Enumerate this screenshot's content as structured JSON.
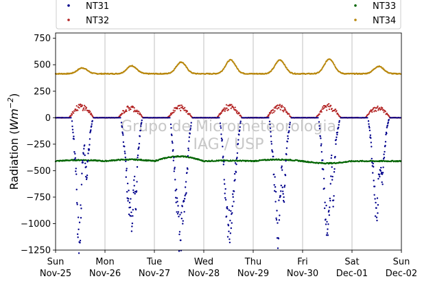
{
  "chart_data": {
    "type": "scatter",
    "title": "",
    "ylabel": "Radiation (Wm⁻²)",
    "ylabel_parts": {
      "prefix": "Radiation (",
      "unit": "Wm",
      "exponent": "−2",
      "suffix": ")"
    },
    "xlabel": "",
    "ylim": [
      -1250,
      800
    ],
    "yticks": [
      -1250,
      -1000,
      -750,
      -500,
      -250,
      0,
      250,
      500,
      750
    ],
    "ytick_labels": [
      "−1250",
      "−1000",
      "−750",
      "−500",
      "−250",
      "0",
      "250",
      "500",
      "750"
    ],
    "xlim": [
      "2020-11-25",
      "2020-12-02"
    ],
    "xticks": [
      {
        "day": "Sun",
        "date": "Nov-25"
      },
      {
        "day": "Mon",
        "date": "Nov-26"
      },
      {
        "day": "Tue",
        "date": "Nov-27"
      },
      {
        "day": "Wed",
        "date": "Nov-28"
      },
      {
        "day": "Thu",
        "date": "Nov-29"
      },
      {
        "day": "Fri",
        "date": "Nov-30"
      },
      {
        "day": "Sat",
        "date": "Dec-01"
      },
      {
        "day": "Sun",
        "date": "Dec-02"
      }
    ],
    "grid": "vertical",
    "legend": {
      "placement": "top",
      "columns": 2
    },
    "watermark": [
      "Grupo de Micrometeorologia",
      "IAG / USP"
    ],
    "series": [
      {
        "name": "NT31",
        "color": "#00008b",
        "base": 0,
        "daily_peak": [
          -1170,
          -1020,
          -1130,
          -1060,
          -1160,
          -1110,
          -960
        ],
        "sample_hours": [
          8,
          9,
          10,
          11,
          12,
          13,
          14,
          15,
          16,
          17,
          18
        ],
        "day_values": [
          [
            -40,
            -260,
            -600,
            -1170,
            -1020,
            -460,
            -300,
            -600,
            -330,
            -120,
            -20
          ],
          [
            -50,
            -230,
            -470,
            -700,
            -880,
            -1020,
            -620,
            -800,
            -350,
            -150,
            -20
          ],
          [
            -60,
            -300,
            -600,
            -880,
            -1130,
            -1100,
            -920,
            -760,
            -500,
            -200,
            -30
          ],
          [
            -50,
            -250,
            -580,
            -930,
            -1060,
            -1050,
            -820,
            -600,
            -400,
            -170,
            -20
          ],
          [
            -40,
            -260,
            -500,
            -790,
            -1160,
            -720,
            -520,
            -750,
            -350,
            -180,
            -30
          ],
          [
            -50,
            -270,
            -560,
            -880,
            -1110,
            -920,
            -390,
            -800,
            -240,
            -140,
            -20
          ],
          [
            -30,
            -200,
            -460,
            -750,
            -960,
            -600,
            -500,
            -580,
            -280,
            -100,
            -10
          ]
        ]
      },
      {
        "name": "NT32",
        "color": "#b22222",
        "night": 0,
        "daily_peak": [
          130,
          115,
          120,
          125,
          120,
          130,
          110
        ]
      },
      {
        "name": "NT33",
        "color": "#006400",
        "night": -410,
        "daily_values": [
          -400,
          -395,
          -365,
          -405,
          -395,
          -430,
          -410
        ]
      },
      {
        "name": "NT34",
        "color": "#b8860b",
        "night": 415,
        "daily_peak": [
          470,
          490,
          525,
          545,
          545,
          555,
          485
        ]
      }
    ]
  }
}
